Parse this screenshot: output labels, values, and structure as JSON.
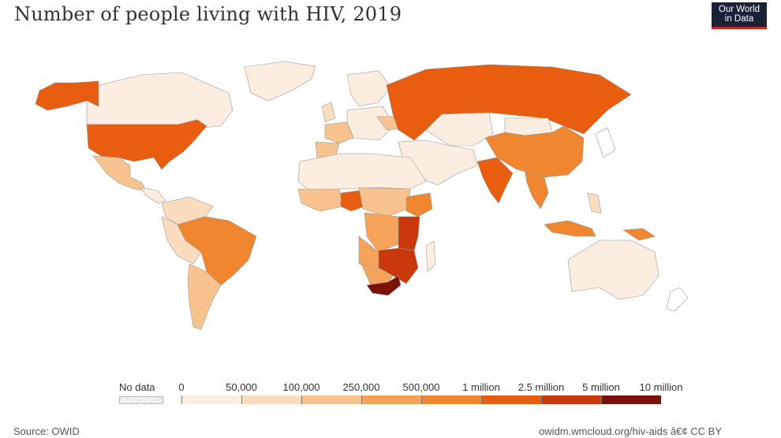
{
  "header": {
    "title": "Number of people living with HIV, 2019",
    "logo_line1": "Our World",
    "logo_line2": "in Data"
  },
  "footer": {
    "source": "Source: OWID",
    "url": "owidm.wmcloud.org/hiv-aids â€¢ CC BY"
  },
  "chart_data": {
    "type": "choropleth-map",
    "title": "Number of people living with HIV, 2019",
    "year": 2019,
    "legend": {
      "no_data_label": "No data",
      "tick_labels": [
        "0",
        "50,000",
        "100,000",
        "250,000",
        "500,000",
        "1 million",
        "2.5 million",
        "5 million",
        "10 million"
      ],
      "bins": [
        {
          "min": 0,
          "max": 50000,
          "color": "#fbeee0"
        },
        {
          "min": 50000,
          "max": 100000,
          "color": "#fbdcbf"
        },
        {
          "min": 100000,
          "max": 250000,
          "color": "#f8c38f"
        },
        {
          "min": 250000,
          "max": 500000,
          "color": "#f5a35b"
        },
        {
          "min": 500000,
          "max": 1000000,
          "color": "#f0862f"
        },
        {
          "min": 1000000,
          "max": 2500000,
          "color": "#e85d10"
        },
        {
          "min": 2500000,
          "max": 5000000,
          "color": "#c8380a"
        },
        {
          "min": 5000000,
          "max": 10000000,
          "color": "#7a1208"
        }
      ],
      "placement": "bottom"
    },
    "regions": [
      {
        "name": "United States",
        "bin": 6
      },
      {
        "name": "Canada",
        "bin": 1
      },
      {
        "name": "Mexico",
        "bin": 3
      },
      {
        "name": "Brazil",
        "bin": 5
      },
      {
        "name": "Argentina",
        "bin": 3
      },
      {
        "name": "Russia",
        "bin": 6
      },
      {
        "name": "China",
        "bin": 5
      },
      {
        "name": "India",
        "bin": 6
      },
      {
        "name": "Indonesia",
        "bin": 5
      },
      {
        "name": "Thailand",
        "bin": 5
      },
      {
        "name": "Nigeria",
        "bin": 6
      },
      {
        "name": "South Africa",
        "bin": 8
      },
      {
        "name": "Mozambique",
        "bin": 7
      },
      {
        "name": "Tanzania",
        "bin": 7
      },
      {
        "name": "Kenya",
        "bin": 7
      },
      {
        "name": "Zambia",
        "bin": 7
      },
      {
        "name": "Zimbabwe",
        "bin": 7
      },
      {
        "name": "Ethiopia",
        "bin": 5
      },
      {
        "name": "DR Congo",
        "bin": 4
      },
      {
        "name": "Angola",
        "bin": 4
      },
      {
        "name": "Australia",
        "bin": 1
      },
      {
        "name": "Europe (most)",
        "bin": 1
      },
      {
        "name": "Middle East / North Africa",
        "bin": 1
      }
    ]
  }
}
